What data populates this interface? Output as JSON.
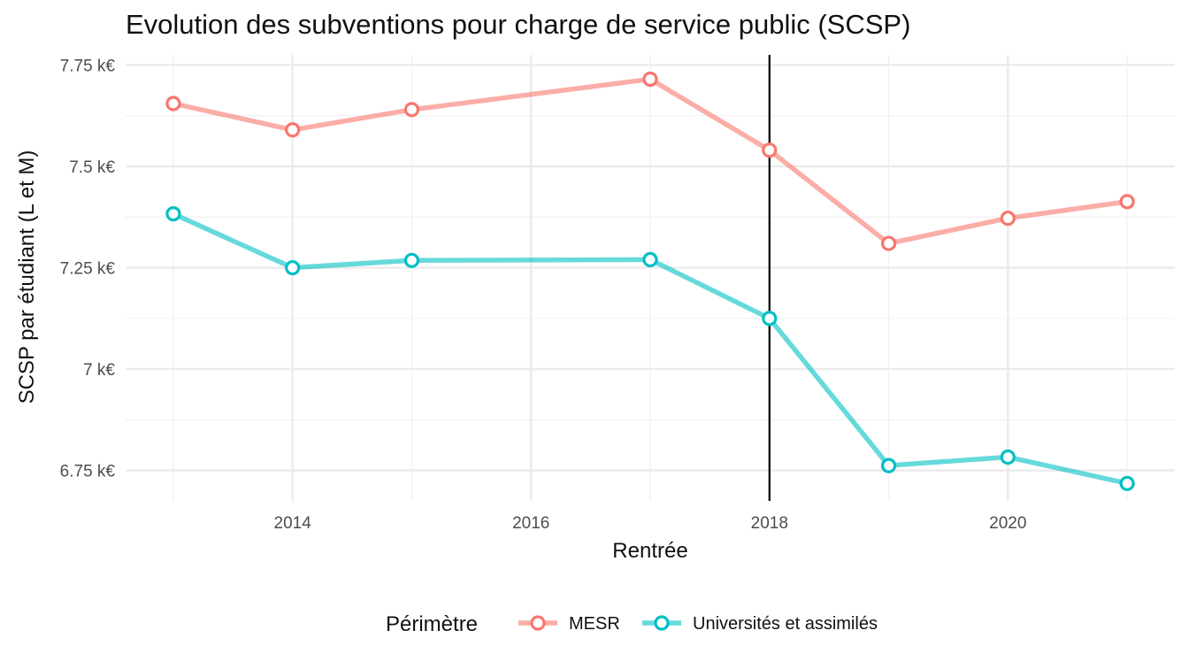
{
  "chart_data": {
    "type": "line",
    "title": "Evolution des subventions pour charge de service public (SCSP)",
    "xlabel": "Rentrée",
    "ylabel": "SCSP par étudiant (L et M)",
    "x": [
      2013,
      2014,
      2015,
      2017,
      2018,
      2019,
      2020,
      2021
    ],
    "xlim": [
      2012.6,
      2021.4
    ],
    "ylim": [
      6.675,
      7.775
    ],
    "x_ticks": [
      {
        "value": 2014,
        "label": "2014"
      },
      {
        "value": 2016,
        "label": "2016"
      },
      {
        "value": 2018,
        "label": "2018"
      },
      {
        "value": 2020,
        "label": "2020"
      }
    ],
    "y_ticks": [
      {
        "value": 6.75,
        "label": "6.75 k€"
      },
      {
        "value": 7.0,
        "label": "7 k€"
      },
      {
        "value": 7.25,
        "label": "7.25 k€"
      },
      {
        "value": 7.5,
        "label": "7.5 k€"
      },
      {
        "value": 7.75,
        "label": "7.75 k€"
      }
    ],
    "vline": 2018,
    "grid": true,
    "legend": {
      "title": "Périmètre",
      "position": "bottom"
    },
    "series": [
      {
        "name": "MESR",
        "color": "#F8766D",
        "values": [
          7.655,
          7.59,
          7.64,
          7.715,
          7.54,
          7.31,
          7.372,
          7.413
        ]
      },
      {
        "name": "Universités et assimilés",
        "color": "#00BFC4",
        "values": [
          7.383,
          7.25,
          7.268,
          7.27,
          7.125,
          6.762,
          6.783,
          6.718
        ]
      }
    ]
  }
}
